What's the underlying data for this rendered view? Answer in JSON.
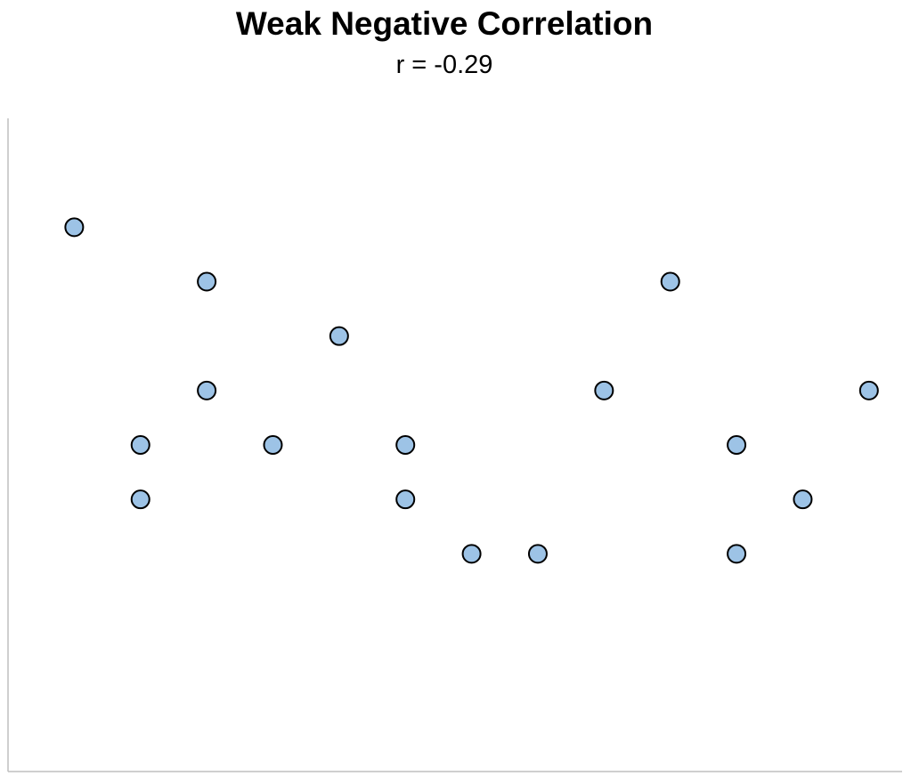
{
  "chart_data": {
    "type": "scatter",
    "title": "Weak Negative Correlation",
    "subtitle": "r = -0.29",
    "xlabel": "",
    "ylabel": "",
    "grid": false,
    "legend": "none",
    "xlim": [
      0,
      13.5
    ],
    "ylim": [
      0,
      12
    ],
    "marker_color": "#9dc3e6",
    "marker_edge_color": "#000000",
    "axis_color": "#bfbfbf",
    "series": [
      {
        "points": [
          {
            "x": 1,
            "y": 10
          },
          {
            "x": 2,
            "y": 6
          },
          {
            "x": 2,
            "y": 5
          },
          {
            "x": 3,
            "y": 9
          },
          {
            "x": 3,
            "y": 7
          },
          {
            "x": 4,
            "y": 6
          },
          {
            "x": 5,
            "y": 8
          },
          {
            "x": 6,
            "y": 6
          },
          {
            "x": 6,
            "y": 5
          },
          {
            "x": 7,
            "y": 4
          },
          {
            "x": 8,
            "y": 4
          },
          {
            "x": 9,
            "y": 7
          },
          {
            "x": 10,
            "y": 9
          },
          {
            "x": 11,
            "y": 6
          },
          {
            "x": 11,
            "y": 4
          },
          {
            "x": 12,
            "y": 5
          },
          {
            "x": 13,
            "y": 7
          }
        ]
      }
    ]
  }
}
